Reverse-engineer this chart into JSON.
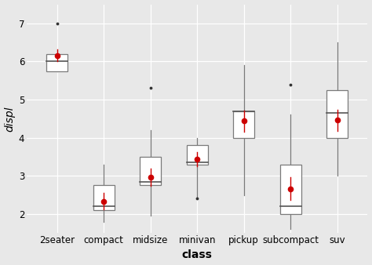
{
  "categories": [
    "2seater",
    "compact",
    "midsize",
    "minivan",
    "pickup",
    "subcompact",
    "suv"
  ],
  "boxes": {
    "2seater": {
      "q1": 5.75,
      "median": 6.0,
      "q3": 6.2,
      "whislo": 5.75,
      "whishi": 5.75,
      "fliers_low": [],
      "fliers_high": [
        7.0
      ]
    },
    "compact": {
      "q1": 2.1,
      "median": 2.2,
      "q3": 2.75,
      "whislo": 1.8,
      "whishi": 3.3,
      "fliers_low": [],
      "fliers_high": []
    },
    "midsize": {
      "q1": 2.75,
      "median": 2.85,
      "q3": 3.5,
      "whislo": 1.95,
      "whishi": 4.2,
      "fliers_low": [],
      "fliers_high": [
        5.3
      ]
    },
    "minivan": {
      "q1": 3.3,
      "median": 3.35,
      "q3": 3.8,
      "whislo": 2.4,
      "whishi": 4.0,
      "fliers_low": [
        2.4
      ],
      "fliers_high": []
    },
    "pickup": {
      "q1": 4.0,
      "median": 4.7,
      "q3": 4.7,
      "whislo": 2.5,
      "whishi": 5.9,
      "fliers_low": [],
      "fliers_high": []
    },
    "subcompact": {
      "q1": 2.0,
      "median": 2.2,
      "q3": 3.3,
      "whislo": 1.6,
      "whishi": 4.6,
      "fliers_low": [],
      "fliers_high": [
        5.4
      ]
    },
    "suv": {
      "q1": 4.0,
      "median": 4.65,
      "q3": 5.25,
      "whislo": 3.0,
      "whishi": 6.5,
      "fliers_low": [],
      "fliers_high": []
    }
  },
  "means": {
    "2seater": {
      "mean": 6.16,
      "sd": 0.16
    },
    "compact": {
      "mean": 2.33,
      "sd": 0.22
    },
    "midsize": {
      "mean": 2.96,
      "sd": 0.22
    },
    "minivan": {
      "mean": 3.44,
      "sd": 0.18
    },
    "pickup": {
      "mean": 4.44,
      "sd": 0.28
    },
    "subcompact": {
      "mean": 2.66,
      "sd": 0.3
    },
    "suv": {
      "mean": 4.46,
      "sd": 0.28
    }
  },
  "ylim": [
    1.5,
    7.5
  ],
  "yticks": [
    2,
    3,
    4,
    5,
    6,
    7
  ],
  "ylabel": "displ",
  "xlabel": "class",
  "bg_color": "#e8e8e8",
  "box_fill": "#ffffff",
  "box_edge": "#7a7a7a",
  "median_color": "#555555",
  "whisker_color": "#7a7a7a",
  "flier_color": "#333333",
  "mean_dot_color": "#cc0000",
  "mean_sd_color": "#cc0000",
  "grid_color": "#ffffff",
  "axis_label_fontsize": 10,
  "tick_fontsize": 8.5,
  "box_width": 0.45
}
